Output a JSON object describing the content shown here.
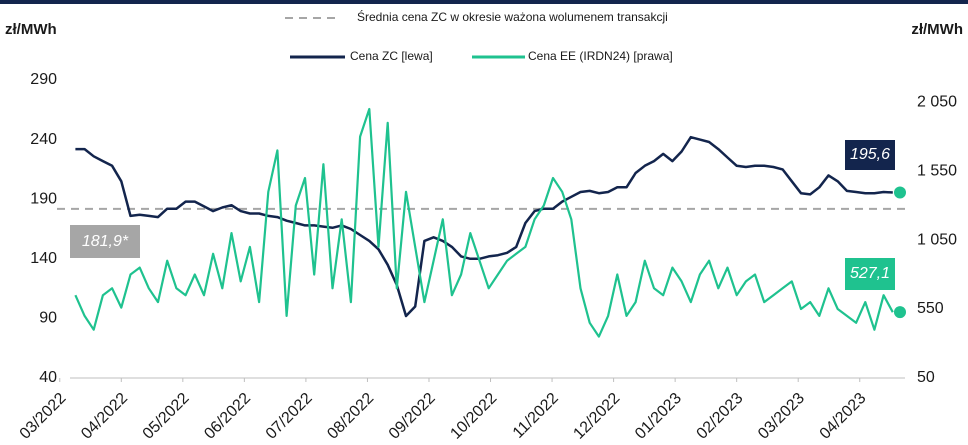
{
  "chart_data": {
    "type": "line",
    "y_label": "zł/MWh",
    "y2_label": "zł/MWh",
    "xticks": [
      {
        "value": -1.7,
        "label": "03/2022"
      },
      {
        "value": 5,
        "label": "04/2022"
      },
      {
        "value": 11.7,
        "label": "05/2022"
      },
      {
        "value": 18.4,
        "label": "06/2022"
      },
      {
        "value": 25.1,
        "label": "07/2022"
      },
      {
        "value": 31.8,
        "label": "08/2022"
      },
      {
        "value": 38.5,
        "label": "09/2022"
      },
      {
        "value": 45.2,
        "label": "10/2022"
      },
      {
        "value": 51.9,
        "label": "11/2022"
      },
      {
        "value": 58.6,
        "label": "12/2022"
      },
      {
        "value": 65.3,
        "label": "01/2023"
      },
      {
        "value": 72,
        "label": "02/2023"
      },
      {
        "value": 78.7,
        "label": "03/2023"
      },
      {
        "value": 85.4,
        "label": "04/2023"
      }
    ],
    "xlim": [
      -2,
      90
    ],
    "ylim": [
      40,
      290
    ],
    "yticks": [
      40,
      90,
      140,
      190,
      240,
      290
    ],
    "y2lim": [
      50,
      2210
    ],
    "y2ticks": [
      50,
      550,
      {
        "value": 1050,
        "label": "1 050"
      },
      {
        "value": 1550,
        "label": "1 550"
      },
      {
        "value": 2050,
        "label": "2 050"
      }
    ],
    "reference_line": {
      "name": "Średnia cena ZC w okresie ważona wolumenem transakcji",
      "value": 181.9,
      "value_label": "181,9*",
      "color": "#a6a6a6"
    },
    "series": [
      {
        "name": "Cena ZC [lewa]",
        "color": "#13254d",
        "value_label": "195,6",
        "values": [
          232,
          232,
          226,
          222,
          218,
          205,
          176,
          177,
          176,
          175,
          182,
          182,
          188,
          188,
          184,
          180,
          183,
          185,
          180,
          178,
          178,
          176,
          175,
          172,
          170,
          168,
          168,
          167,
          166,
          168,
          165,
          160,
          155,
          148,
          135,
          118,
          92,
          100,
          155,
          158,
          155,
          150,
          142,
          140,
          140,
          142,
          143,
          145,
          150,
          170,
          180,
          182,
          182,
          188,
          192,
          196,
          197,
          195,
          196,
          200,
          200,
          212,
          218,
          222,
          228,
          222,
          230,
          242,
          240,
          238,
          232,
          225,
          218,
          217,
          218,
          218,
          217,
          215,
          205,
          195,
          194,
          200,
          210,
          205,
          197,
          196,
          195,
          195,
          196,
          195.6
        ]
      },
      {
        "name": "Cena EE (IRDN24) [prawa]",
        "color": "#1fc28f",
        "axis": "y2",
        "value_label": "527,1",
        "values": [
          650,
          500,
          400,
          650,
          700,
          560,
          800,
          850,
          700,
          600,
          900,
          700,
          650,
          800,
          650,
          950,
          700,
          1100,
          750,
          1000,
          600,
          1400,
          1700,
          500,
          1300,
          1500,
          800,
          1600,
          700,
          1200,
          600,
          1800,
          2000,
          1000,
          1900,
          700,
          1400,
          1000,
          600,
          900,
          1200,
          650,
          800,
          1100,
          900,
          700,
          800,
          900,
          950,
          1000,
          1200,
          1300,
          1500,
          1400,
          1200,
          700,
          450,
          350,
          500,
          800,
          500,
          600,
          900,
          700,
          650,
          850,
          750,
          600,
          800,
          900,
          700,
          850,
          650,
          750,
          800,
          600,
          650,
          700,
          750,
          550,
          600,
          500,
          700,
          550,
          500,
          450,
          600,
          400,
          650,
          527.1
        ]
      }
    ]
  }
}
